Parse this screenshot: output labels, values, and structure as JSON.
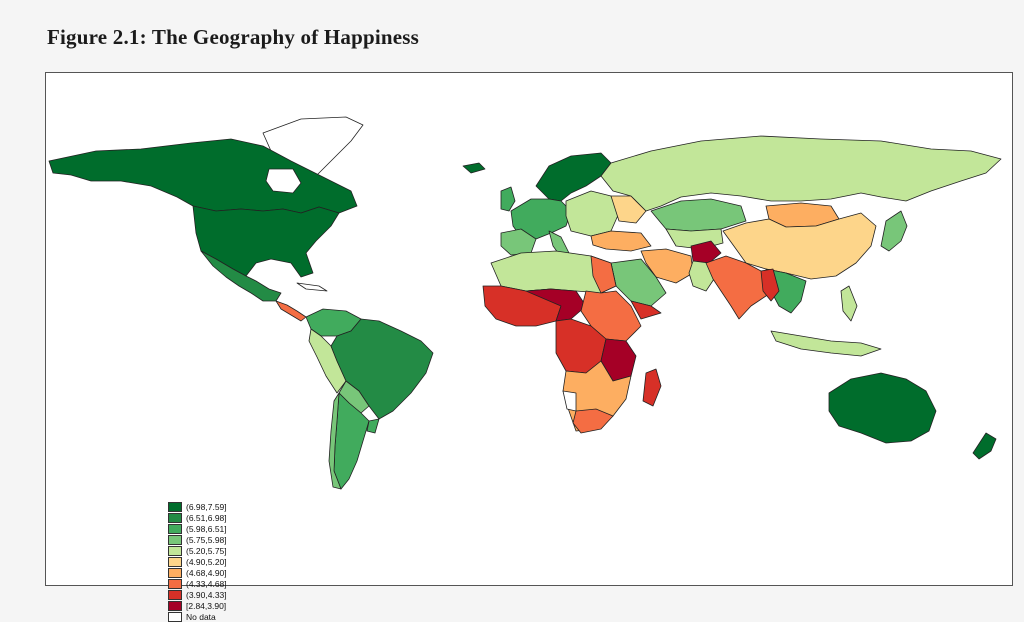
{
  "title": "Figure 2.1: The Geography of Happiness",
  "legend": [
    {
      "label": "(6.98,7.59]",
      "color": "#006d2c"
    },
    {
      "label": "(6.51,6.98]",
      "color": "#238b45"
    },
    {
      "label": "(5.98,6.51]",
      "color": "#41ab5d"
    },
    {
      "label": "(5.75,5.98]",
      "color": "#78c679"
    },
    {
      "label": "(5.20,5.75]",
      "color": "#c2e699"
    },
    {
      "label": "(4.90,5.20]",
      "color": "#fdd58a"
    },
    {
      "label": "(4.68,4.90]",
      "color": "#fdae61"
    },
    {
      "label": "(4.33,4.68]",
      "color": "#f46d43"
    },
    {
      "label": "(3.90,4.33]",
      "color": "#d73027"
    },
    {
      "label": "[2.84,3.90]",
      "color": "#a50026"
    },
    {
      "label": "No data",
      "color": "#ffffff"
    }
  ]
}
